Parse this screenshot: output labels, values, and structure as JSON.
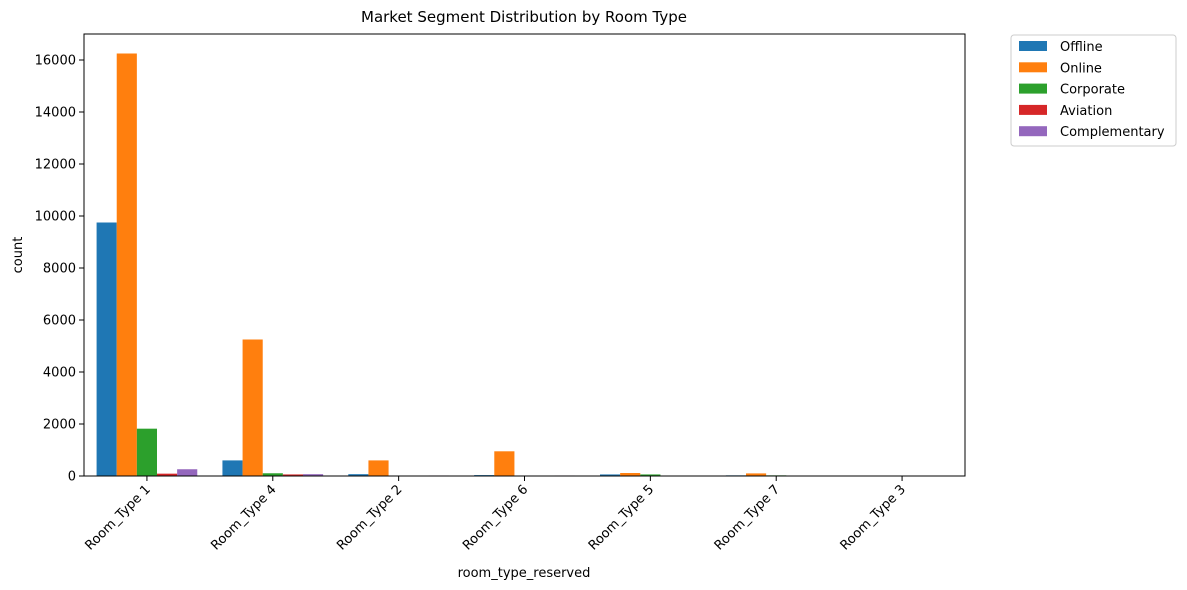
{
  "chart_data": {
    "type": "bar",
    "title": "Market Segment Distribution by Room Type",
    "xlabel": "room_type_reserved",
    "ylabel": "count",
    "ylim": [
      0,
      17000
    ],
    "yticks": [
      0,
      2000,
      4000,
      6000,
      8000,
      10000,
      12000,
      14000,
      16000
    ],
    "categories": [
      "Room_Type 1",
      "Room_Type 4",
      "Room_Type 2",
      "Room_Type 6",
      "Room_Type 5",
      "Room_Type 7",
      "Room_Type 3"
    ],
    "legend_position": "outside-top-right",
    "grid": false,
    "series": [
      {
        "name": "Offline",
        "color": "#1f77b4",
        "values": [
          9750,
          600,
          70,
          35,
          60,
          25,
          2
        ]
      },
      {
        "name": "Online",
        "color": "#ff7f0e",
        "values": [
          16250,
          5250,
          600,
          950,
          115,
          100,
          3
        ]
      },
      {
        "name": "Corporate",
        "color": "#2ca02c",
        "values": [
          1820,
          105,
          10,
          10,
          60,
          25,
          1
        ]
      },
      {
        "name": "Aviation",
        "color": "#d62728",
        "values": [
          90,
          60,
          3,
          3,
          3,
          2,
          0
        ]
      },
      {
        "name": "Complementary",
        "color": "#9467bd",
        "values": [
          260,
          70,
          20,
          20,
          15,
          10,
          2
        ]
      }
    ]
  }
}
